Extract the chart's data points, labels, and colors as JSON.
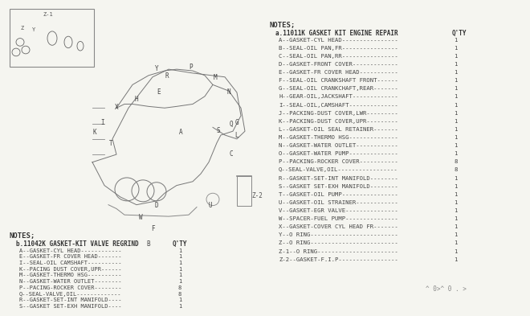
{
  "background_color": "#f5f5f0",
  "title": "",
  "notes_left_header": "NOTES;",
  "notes_left_label": "b.11042K GASKET-KIT VALVE REGRIND",
  "notes_left_qty": "Q'TY",
  "notes_left_items": [
    [
      "A",
      "GASKET-CYL HEAD",
      "1"
    ],
    [
      "E",
      "GASKET-FR COVER HEAD",
      "1"
    ],
    [
      "I",
      "SEAL-OIL CAMSHAFT",
      "1"
    ],
    [
      "K",
      "PACING DUST COVER,UPR",
      "1"
    ],
    [
      "M",
      "GASKET-THERMO HSG",
      "1"
    ],
    [
      "N",
      "GASKET-WATER OUTLET",
      "1"
    ],
    [
      "P",
      "PACING-ROCKER COVER",
      "8"
    ],
    [
      "Q",
      "SEAL-VALVE,OIL",
      "8"
    ],
    [
      "R",
      "GASKET-SET-INT MANIFOLD",
      "1"
    ],
    [
      "S",
      "GASKET SET-EXH MANIFOLD",
      "1"
    ]
  ],
  "notes_right_header": "NOTES;",
  "notes_right_label": "a.11011K GASKET KIT ENGINE REPAIR",
  "notes_right_qty": "Q'TY",
  "notes_right_items": [
    [
      "A",
      "GASKET-CYL HEAD",
      "1"
    ],
    [
      "B",
      "SEAL-OIL PAN,FR",
      "1"
    ],
    [
      "C",
      "SEAL-OIL PAN,RR",
      "1"
    ],
    [
      "D",
      "GASKET-FRONT COVER",
      "1"
    ],
    [
      "E",
      "GASKET-FR COVER HEAD",
      "1"
    ],
    [
      "F",
      "SEAL-OIL CRANKSHAFT FRONT",
      "1"
    ],
    [
      "G",
      "SEAL-OIL CRANKCHAFT,REAR",
      "1"
    ],
    [
      "H",
      "GEAR-OIL,JACKSHAFT",
      "1"
    ],
    [
      "I",
      "SEAL-OIL,CAMSHAFT",
      "1"
    ],
    [
      "J",
      "PACKING-DUST COVER,LWR",
      "1"
    ],
    [
      "K",
      "PACKING-DUST COVER,UPR",
      "1"
    ],
    [
      "L",
      "GASKET-OIL SEAL RETAINER",
      "1"
    ],
    [
      "M",
      "GASKET-THERMO HSG",
      "1"
    ],
    [
      "N",
      "GASKET-WATER OUTLET",
      "1"
    ],
    [
      "O",
      "GASKET-WATER PUMP",
      "1"
    ],
    [
      "P",
      "PACKING-ROCKER COVER",
      "8"
    ],
    [
      "Q",
      "SEAL-VALVE,OIL",
      "8"
    ],
    [
      "R",
      "GASKET-SET-INT MANIFOLD",
      "1"
    ],
    [
      "S",
      "GASKET SET-EXH MANIFOLD",
      "1"
    ],
    [
      "T",
      "GASKET-OIL PUMP",
      "1"
    ],
    [
      "U",
      "GASKET-OIL STRAINER",
      "1"
    ],
    [
      "V",
      "GASKET-EGR VALVE",
      "1"
    ],
    [
      "W",
      "SPACER-FUEL PUMP",
      "1"
    ],
    [
      "X",
      "GASKET-COVER CYL HEAD FR",
      "1"
    ],
    [
      "Y",
      "O RING",
      "1"
    ],
    [
      "Z",
      "O RING",
      "1"
    ],
    [
      "Z-1",
      "O RING",
      "1"
    ],
    [
      "Z-2",
      "GASKET-F.I.P",
      "1"
    ]
  ],
  "bottom_text": "^ 0>^ 0 . >",
  "engine_labels": [
    "Y",
    "R",
    "P",
    "M",
    "N",
    "E",
    "H",
    "X",
    "I",
    "T",
    "K",
    "A",
    "S",
    "Q",
    "G",
    "L",
    "C",
    "D",
    "W",
    "F",
    "B",
    "U",
    "Z-2"
  ],
  "inset_labels": [
    "Z-1",
    "Z",
    "Y"
  ]
}
